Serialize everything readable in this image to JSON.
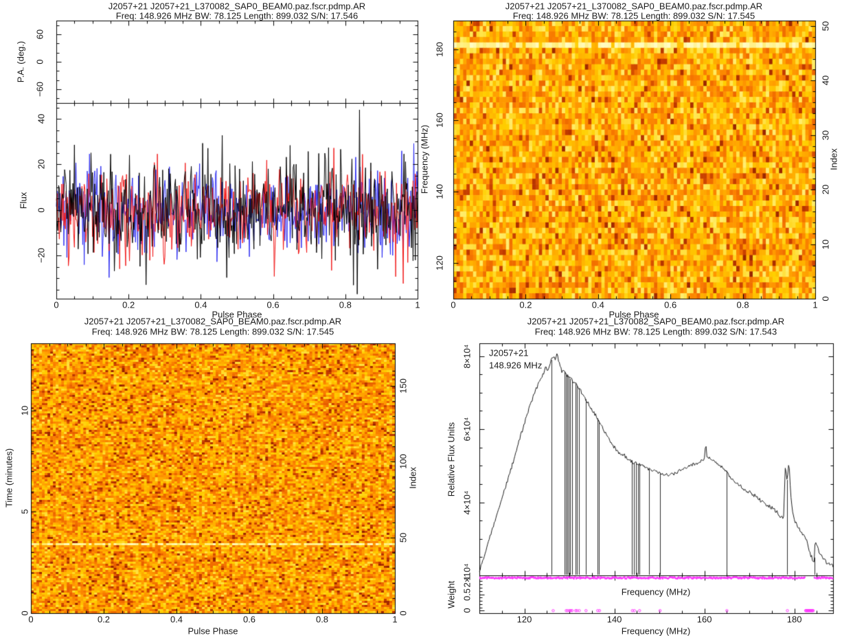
{
  "figure": {
    "background": "#ffffff",
    "text_color": "#1a1a1a",
    "source_name": "J2057+21"
  },
  "chart_data": [
    {
      "id": "polarization-profile",
      "type": "line",
      "title": "J2057+21 J2057+21_L370082_SAP0_BEAM0.paz.fscr.pdmp.AR",
      "subtitle": "Freq: 148.926 MHz BW: 78.125 Length: 899.032 S/N: 17.546",
      "xlabel": "Pulse Phase",
      "xlim": [
        0,
        1
      ],
      "xticks": [
        0,
        0.2,
        0.4,
        0.6,
        0.8,
        1
      ],
      "xtick_labels": [
        "0",
        "0.2",
        "0.4",
        "0.6",
        "0.8",
        "1"
      ],
      "pa_panel": {
        "ylabel": "P.A. (deg.)",
        "ylim": [
          -90,
          90
        ],
        "yticks": [
          60,
          0,
          -60
        ],
        "ytick_labels": [
          "60",
          "0",
          "−60"
        ],
        "content": "empty (no significant polarization position angles)"
      },
      "flux_panel": {
        "ylabel": "Flux",
        "ylim": [
          -39,
          47
        ],
        "yticks": [
          40,
          20,
          0,
          -20
        ],
        "ytick_labels": [
          "40",
          "20",
          "0",
          "−20"
        ],
        "series": [
          {
            "name": "total-intensity",
            "color": "#000000",
            "noise_sigma": 11.5
          },
          {
            "name": "linear-polarization",
            "color": "#f01616",
            "noise_sigma": 9.5
          },
          {
            "name": "circular-polarization",
            "color": "#2828f0",
            "noise_sigma": 9.5
          }
        ],
        "description": "noise-dominated pulse profile, no pulse visible"
      }
    },
    {
      "id": "phase-vs-frequency",
      "type": "heatmap",
      "title": "J2057+21 J2057+21_L370082_SAP0_BEAM0.paz.fscr.pdmp.AR",
      "subtitle": "Freq: 148.926 MHz BW: 78.125 Length: 899.032 S/N: 17.545",
      "xlabel": "Pulse Phase",
      "xlim": [
        0,
        1
      ],
      "xticks": [
        0,
        0.2,
        0.4,
        0.6,
        0.8,
        1
      ],
      "xtick_labels": [
        "0",
        "0.2",
        "0.4",
        "0.6",
        "0.8",
        "1"
      ],
      "ylabel": "Frequency (MHz)",
      "ylim": [
        110,
        188
      ],
      "yticks": [
        120,
        140,
        160,
        180
      ],
      "ytick_labels": [
        "120",
        "140",
        "160",
        "180"
      ],
      "y2label": "Index",
      "y2lim": [
        0,
        51
      ],
      "y2ticks": [
        0,
        10,
        20,
        30,
        40,
        50
      ],
      "y2tick_labels": [
        "0",
        "10",
        "20",
        "30",
        "40",
        "50"
      ],
      "grid": {
        "cols": 110,
        "rows": 51
      },
      "bright_line_freq": 182.5,
      "palette": [
        "#801800",
        "#c23a00",
        "#e85f00",
        "#fa7e00",
        "#ff9c00",
        "#ffb400",
        "#ffcf00",
        "#ffe95c",
        "#fffdc8"
      ],
      "description": "random orange noise; bright horizontal RFI stripe near 182.5 MHz"
    },
    {
      "id": "phase-vs-time",
      "type": "heatmap",
      "title": "J2057+21 J2057+21_L370082_SAP0_BEAM0.paz.fscr.pdmp.AR",
      "subtitle": "Freq: 148.926 MHz BW: 78.125 Length: 899.032 S/N: 17.545",
      "xlabel": "Pulse Phase",
      "xlim": [
        0,
        1
      ],
      "xticks": [
        0,
        0.2,
        0.4,
        0.6,
        0.8,
        1
      ],
      "xtick_labels": [
        "0",
        "0.2",
        "0.4",
        "0.6",
        "0.8",
        "1"
      ],
      "ylabel": "Time (minutes)",
      "ylim": [
        0,
        13.3
      ],
      "yticks": [
        0,
        5,
        10
      ],
      "ytick_labels": [
        "0",
        "5",
        "10"
      ],
      "y2label": "Index",
      "y2lim": [
        0,
        178
      ],
      "y2ticks": [
        0,
        50,
        100,
        150
      ],
      "y2tick_labels": [
        "0",
        "50",
        "100",
        "150"
      ],
      "grid": {
        "cols": 132,
        "rows": 131
      },
      "bright_line_time": 3.5,
      "palette": [
        "#801800",
        "#c23a00",
        "#e85f00",
        "#fa7e00",
        "#ff9c00",
        "#ffb400",
        "#ffcf00",
        "#ffe95c",
        "#fffdc8"
      ],
      "description": "random orange noise; bright horizontal stripe near 3.5 minutes"
    },
    {
      "id": "bandpass-spectrum",
      "type": "line",
      "title": "J2057+21 J2057+21_L370082_SAP0_BEAM0.paz.fscr.pdmp.AR",
      "subtitle": "Freq: 148.926 MHz BW: 78.125 Length: 899.032 S/N: 17.543",
      "annotation_line1": "J2057+21",
      "annotation_line2": "148.926 MHz",
      "xlabel": "Frequency (MHz)",
      "xlim": [
        110,
        188.6
      ],
      "xticks": [
        120,
        140,
        160,
        180
      ],
      "xtick_labels": [
        "120",
        "140",
        "160",
        "180"
      ],
      "ylabel": "Relative Flux Units",
      "ylim_1e4": [
        2,
        8.35
      ],
      "yticks_1e4": [
        2,
        4,
        6,
        8
      ],
      "ytick_labels": [
        "2×10⁴",
        "4×10⁴",
        "6×10⁴",
        "8×10⁴"
      ],
      "spectrum_keypoints_1e4": [
        [
          110,
          2.1
        ],
        [
          111,
          2.5
        ],
        [
          112,
          2.9
        ],
        [
          113,
          3.3
        ],
        [
          114,
          3.75
        ],
        [
          115,
          4.1
        ],
        [
          116,
          4.5
        ],
        [
          117,
          4.9
        ],
        [
          118,
          5.3
        ],
        [
          119,
          5.75
        ],
        [
          120,
          6.15
        ],
        [
          121,
          6.55
        ],
        [
          122,
          6.9
        ],
        [
          123,
          7.2
        ],
        [
          124,
          7.45
        ],
        [
          124.7,
          7.7
        ],
        [
          125.3,
          7.6
        ],
        [
          125.8,
          7.85
        ],
        [
          126.3,
          8.0
        ],
        [
          126.8,
          7.9
        ],
        [
          127.3,
          8.05
        ],
        [
          127.8,
          7.8
        ],
        [
          128.3,
          7.6
        ],
        [
          129,
          7.55
        ],
        [
          130,
          7.4
        ],
        [
          131,
          7.3
        ],
        [
          132,
          7.15
        ],
        [
          133,
          6.95
        ],
        [
          134,
          6.75
        ],
        [
          135,
          6.55
        ],
        [
          136,
          6.35
        ],
        [
          137,
          6.15
        ],
        [
          138,
          5.9
        ],
        [
          139,
          5.7
        ],
        [
          140,
          5.5
        ],
        [
          141,
          5.35
        ],
        [
          142,
          5.3
        ],
        [
          143,
          5.2
        ],
        [
          144,
          5.1
        ],
        [
          145,
          5.05
        ],
        [
          146,
          5.0
        ],
        [
          147,
          4.95
        ],
        [
          148,
          4.9
        ],
        [
          149,
          4.85
        ],
        [
          150,
          4.8
        ],
        [
          151,
          4.78
        ],
        [
          152,
          4.75
        ],
        [
          153,
          4.78
        ],
        [
          154,
          4.82
        ],
        [
          155,
          4.9
        ],
        [
          156,
          4.95
        ],
        [
          157,
          5.0
        ],
        [
          158,
          5.05
        ],
        [
          159,
          5.1
        ],
        [
          160,
          5.2
        ],
        [
          160.3,
          5.6
        ],
        [
          160.6,
          5.25
        ],
        [
          161,
          5.2
        ],
        [
          162,
          5.15
        ],
        [
          163,
          5.05
        ],
        [
          164,
          4.95
        ],
        [
          165,
          4.85
        ],
        [
          166,
          4.65
        ],
        [
          167,
          4.55
        ],
        [
          168,
          4.45
        ],
        [
          169,
          4.35
        ],
        [
          170,
          4.28
        ],
        [
          171,
          4.2
        ],
        [
          172,
          4.1
        ],
        [
          173,
          4.0
        ],
        [
          174,
          3.92
        ],
        [
          175,
          3.85
        ],
        [
          176,
          3.75
        ],
        [
          177,
          3.6
        ],
        [
          177.6,
          3.55
        ],
        [
          178.0,
          5.05
        ],
        [
          178.4,
          4.55
        ],
        [
          178.8,
          5.15
        ],
        [
          179.2,
          4.2
        ],
        [
          179.6,
          3.7
        ],
        [
          180,
          3.5
        ],
        [
          180.5,
          3.4
        ],
        [
          181,
          3.3
        ],
        [
          181.5,
          3.2
        ],
        [
          182,
          3.1
        ],
        [
          182.5,
          3.0
        ],
        [
          183,
          2.85
        ],
        [
          183.5,
          2.6
        ],
        [
          184,
          2.45
        ],
        [
          184.4,
          2.35
        ],
        [
          184.6,
          2.9
        ],
        [
          185,
          2.8
        ],
        [
          185.5,
          2.65
        ],
        [
          186,
          2.55
        ],
        [
          186.5,
          2.45
        ],
        [
          187.2,
          2.35
        ],
        [
          188,
          2.3
        ],
        [
          188.6,
          2.25
        ]
      ],
      "rfi_dip_freqs_mhz": [
        125.95,
        128.85,
        129.2,
        129.5,
        129.85,
        130.2,
        130.55,
        131.35,
        131.65,
        132.15,
        133.65,
        136.25,
        136.6,
        143.9,
        144.35,
        144.8,
        145.2,
        145.6,
        147.75,
        150.1,
        164.9,
        178.35,
        184.45
      ],
      "weight_panel": {
        "ylabel": "Weight",
        "ylim": [
          -0.077,
          1.077
        ],
        "yticks": [
          1,
          0.5,
          0
        ],
        "ytick_labels": [
          "1",
          "0.5",
          "0"
        ],
        "color": "#ff33ff",
        "one_weight_segments_mhz": [
          [
            110.1,
            182.35
          ],
          [
            184.5,
            188.5
          ]
        ],
        "zero_weight_freqs_mhz": [
          126.4,
          129.3,
          129.6,
          130.0,
          130.3,
          130.6,
          131.4,
          131.7,
          132.2,
          133.7,
          136.3,
          136.7,
          144.0,
          144.45,
          145.6,
          150.15,
          165.0,
          178.45
        ],
        "zero_weight_cluster_mhz": [
          182.5,
          184.3,
          0.12
        ]
      }
    }
  ]
}
